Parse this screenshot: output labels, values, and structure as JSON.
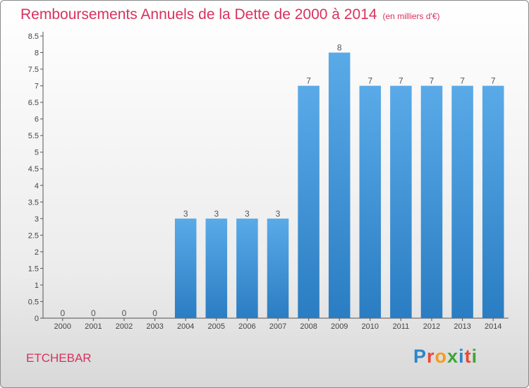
{
  "header": {
    "title": "Remboursements Annuels de la Dette de 2000 à 2014",
    "subtitle": "(en milliers d'€)"
  },
  "footer": {
    "commune": "ETCHEBAR",
    "brand": "Proxiti"
  },
  "colors": {
    "accent": "#d9315f",
    "bar_top": "#5aaae8",
    "bar_bottom": "#2a7dc2"
  },
  "chart_data": {
    "type": "bar",
    "title": "Remboursements Annuels de la Dette de 2000 à 2014",
    "subtitle": "(en milliers d'€)",
    "xlabel": "",
    "ylabel": "",
    "categories": [
      "2000",
      "2001",
      "2002",
      "2003",
      "2004",
      "2005",
      "2006",
      "2007",
      "2008",
      "2009",
      "2010",
      "2011",
      "2012",
      "2013",
      "2014"
    ],
    "values": [
      0,
      0,
      0,
      0,
      3,
      3,
      3,
      3,
      7,
      8,
      7,
      7,
      7,
      7,
      7
    ],
    "data_labels": [
      "0",
      "0",
      "0",
      "0",
      "3",
      "3",
      "3",
      "3",
      "7",
      "8",
      "7",
      "7",
      "7",
      "7",
      "7"
    ],
    "yticks": [
      "0",
      "0.5",
      "1",
      "1.5",
      "2",
      "2.5",
      "3",
      "3.5",
      "4",
      "4.5",
      "5",
      "5.5",
      "6",
      "6.5",
      "7",
      "7.5",
      "8",
      "8.5"
    ],
    "ylim": [
      0,
      8.5
    ],
    "grid": false,
    "legend": "none"
  }
}
